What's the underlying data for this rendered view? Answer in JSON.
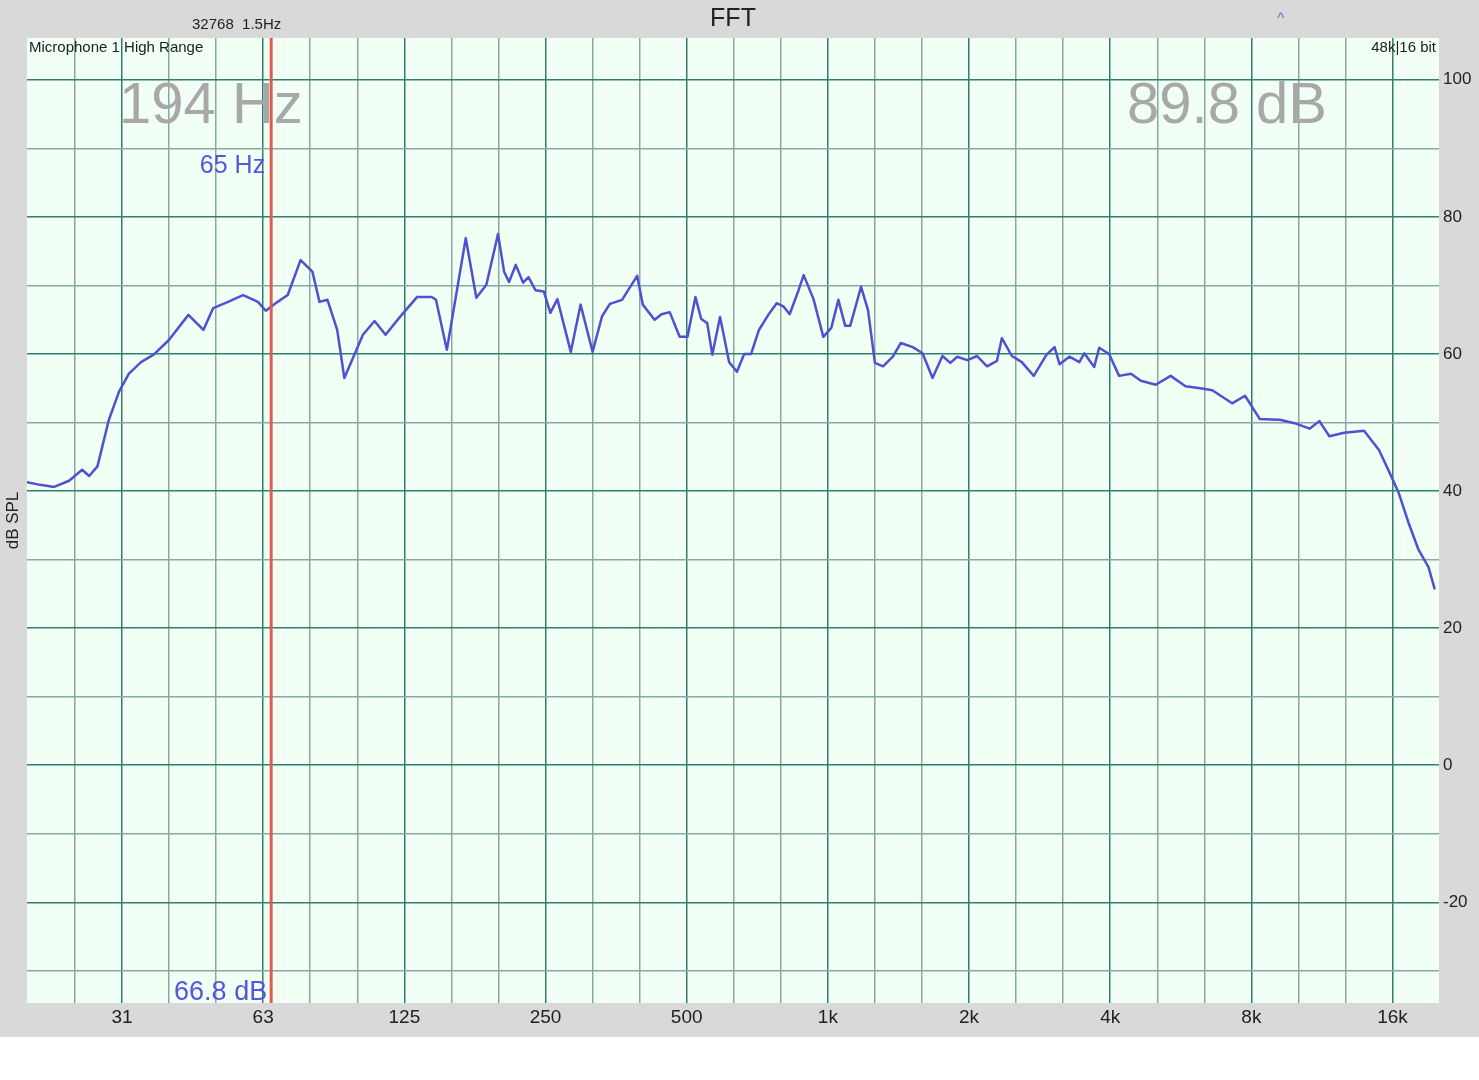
{
  "chart_data": {
    "type": "line",
    "title": "FFT",
    "ylabel": "dB SPL",
    "log": "x",
    "grid": true,
    "legend": false,
    "marker": "none",
    "line_style": "solid",
    "xlim": [
      19.6,
      20100
    ],
    "ylim": [
      -34.7,
      106.1
    ],
    "xticks": [
      {
        "value": 24.8,
        "label": null
      },
      {
        "value": 31.25,
        "label": "31"
      },
      {
        "value": 39.37,
        "label": null
      },
      {
        "value": 49.61,
        "label": null
      },
      {
        "value": 62.5,
        "label": "63"
      },
      {
        "value": 78.75,
        "label": null
      },
      {
        "value": 99.21,
        "label": null
      },
      125,
      {
        "value": 157.5,
        "label": null
      },
      {
        "value": 198.4,
        "label": null
      },
      250,
      {
        "value": 315,
        "label": null
      },
      {
        "value": 396.9,
        "label": null
      },
      500,
      {
        "value": 630,
        "label": null
      },
      {
        "value": 793.7,
        "label": null
      },
      {
        "value": 1000,
        "label": "1k"
      },
      {
        "value": 1260,
        "label": null
      },
      {
        "value": 1587,
        "label": null
      },
      {
        "value": 2000,
        "label": "2k"
      },
      {
        "value": 2520,
        "label": null
      },
      {
        "value": 3175,
        "label": null
      },
      {
        "value": 4000,
        "label": "4k"
      },
      {
        "value": 5040,
        "label": null
      },
      {
        "value": 6350,
        "label": null
      },
      {
        "value": 8000,
        "label": "8k"
      },
      {
        "value": 10079,
        "label": null
      },
      {
        "value": 12699,
        "label": null
      },
      {
        "value": 16000,
        "label": "16k"
      }
    ],
    "yticks": [
      {
        "value": -30,
        "label": null
      },
      -20,
      {
        "value": -10,
        "label": null
      },
      0,
      {
        "value": 10,
        "label": null
      },
      20,
      {
        "value": 30,
        "label": null
      },
      40,
      {
        "value": 50,
        "label": null
      },
      60,
      {
        "value": 70,
        "label": null
      },
      80,
      {
        "value": 90,
        "label": null
      },
      100
    ],
    "ref_lines": [
      {
        "axis": "x",
        "value": 65,
        "label": "65 Hz",
        "color": "#e05a50"
      }
    ],
    "annotations": [
      "32768  1.5Hz",
      "Microphone 1 High Range",
      "48k|16 bit",
      "194 Hz",
      "89.8 dB",
      "66.8 dB",
      "^"
    ],
    "series": [
      {
        "color": "#5050d0",
        "x": [
          19.6,
          20.9,
          22.4,
          24.1,
          25.7,
          26.6,
          27.7,
          29.3,
          30.8,
          32.3,
          34.3,
          36.5,
          39.3,
          43.3,
          46.6,
          48.9,
          52.6,
          56.6,
          60.9,
          63.3,
          67.1,
          70.5,
          75.1,
          79.6,
          82.4,
          85.7,
          89.9,
          93.1,
          102,
          108,
          114,
          122,
          133,
          143,
          146,
          154,
          169,
          178,
          187,
          198,
          204,
          209,
          216,
          224,
          230,
          238,
          248,
          256,
          265,
          283,
          297,
          315,
          330,
          343,
          364,
          392,
          403,
          427,
          442,
          460,
          483,
          502,
          522,
          537,
          553,
          567,
          589,
          616,
          640,
          663,
          686,
          713,
          748,
          778,
          805,
          829,
          866,
          888,
          932,
          978,
          1017,
          1053,
          1089,
          1116,
          1177,
          1218,
          1260,
          1311,
          1376,
          1431,
          1517,
          1592,
          1672,
          1755,
          1825,
          1888,
          1983,
          2081,
          2185,
          2294,
          2350,
          2468,
          2591,
          2748,
          2927,
          3044,
          3119,
          3274,
          3438,
          3522,
          3698,
          3789,
          3979,
          4178,
          4429,
          4650,
          5002,
          5382,
          5790,
          6228,
          6604,
          7279,
          7755,
          8341,
          9196,
          9893,
          10643,
          11174,
          11731,
          12618,
          13914,
          14969,
          15715,
          16497,
          17322,
          18184,
          19094,
          19659
        ],
        "values": [
          41.3,
          40.9,
          40.6,
          41.5,
          43.1,
          42.2,
          43.6,
          50.4,
          54.5,
          57.1,
          58.8,
          59.9,
          62.0,
          65.7,
          63.5,
          66.7,
          67.6,
          68.6,
          67.6,
          66.3,
          67.6,
          68.6,
          73.7,
          72.0,
          67.6,
          67.9,
          63.5,
          56.5,
          62.8,
          64.8,
          62.8,
          65.3,
          68.3,
          68.3,
          67.9,
          60.6,
          76.9,
          68.2,
          70.1,
          77.5,
          72.0,
          70.5,
          73.0,
          70.4,
          71.2,
          69.3,
          69.1,
          66.0,
          68.0,
          60.3,
          67.2,
          60.3,
          65.5,
          67.3,
          67.9,
          71.4,
          67.2,
          65.0,
          65.8,
          66.1,
          62.5,
          62.5,
          68.3,
          65.1,
          64.5,
          59.9,
          65.4,
          58.8,
          57.4,
          60.0,
          60.0,
          63.5,
          65.8,
          67.4,
          66.9,
          65.8,
          69.3,
          71.5,
          68.0,
          62.5,
          63.8,
          67.9,
          64.1,
          64.1,
          69.8,
          66.4,
          58.7,
          58.2,
          59.6,
          61.6,
          61.0,
          60.1,
          56.5,
          59.7,
          58.7,
          59.6,
          59.1,
          59.7,
          58.2,
          59.0,
          62.3,
          59.7,
          58.8,
          56.8,
          59.9,
          61.0,
          58.5,
          59.6,
          58.8,
          60.1,
          58.1,
          60.9,
          60.0,
          56.8,
          57.1,
          56.1,
          55.5,
          56.8,
          55.3,
          55.0,
          54.7,
          52.8,
          53.9,
          50.5,
          50.4,
          49.9,
          49.1,
          50.2,
          48.0,
          48.5,
          48.8,
          46.0,
          42.9,
          39.7,
          35.3,
          31.4,
          28.9,
          25.8
        ]
      }
    ]
  }
}
